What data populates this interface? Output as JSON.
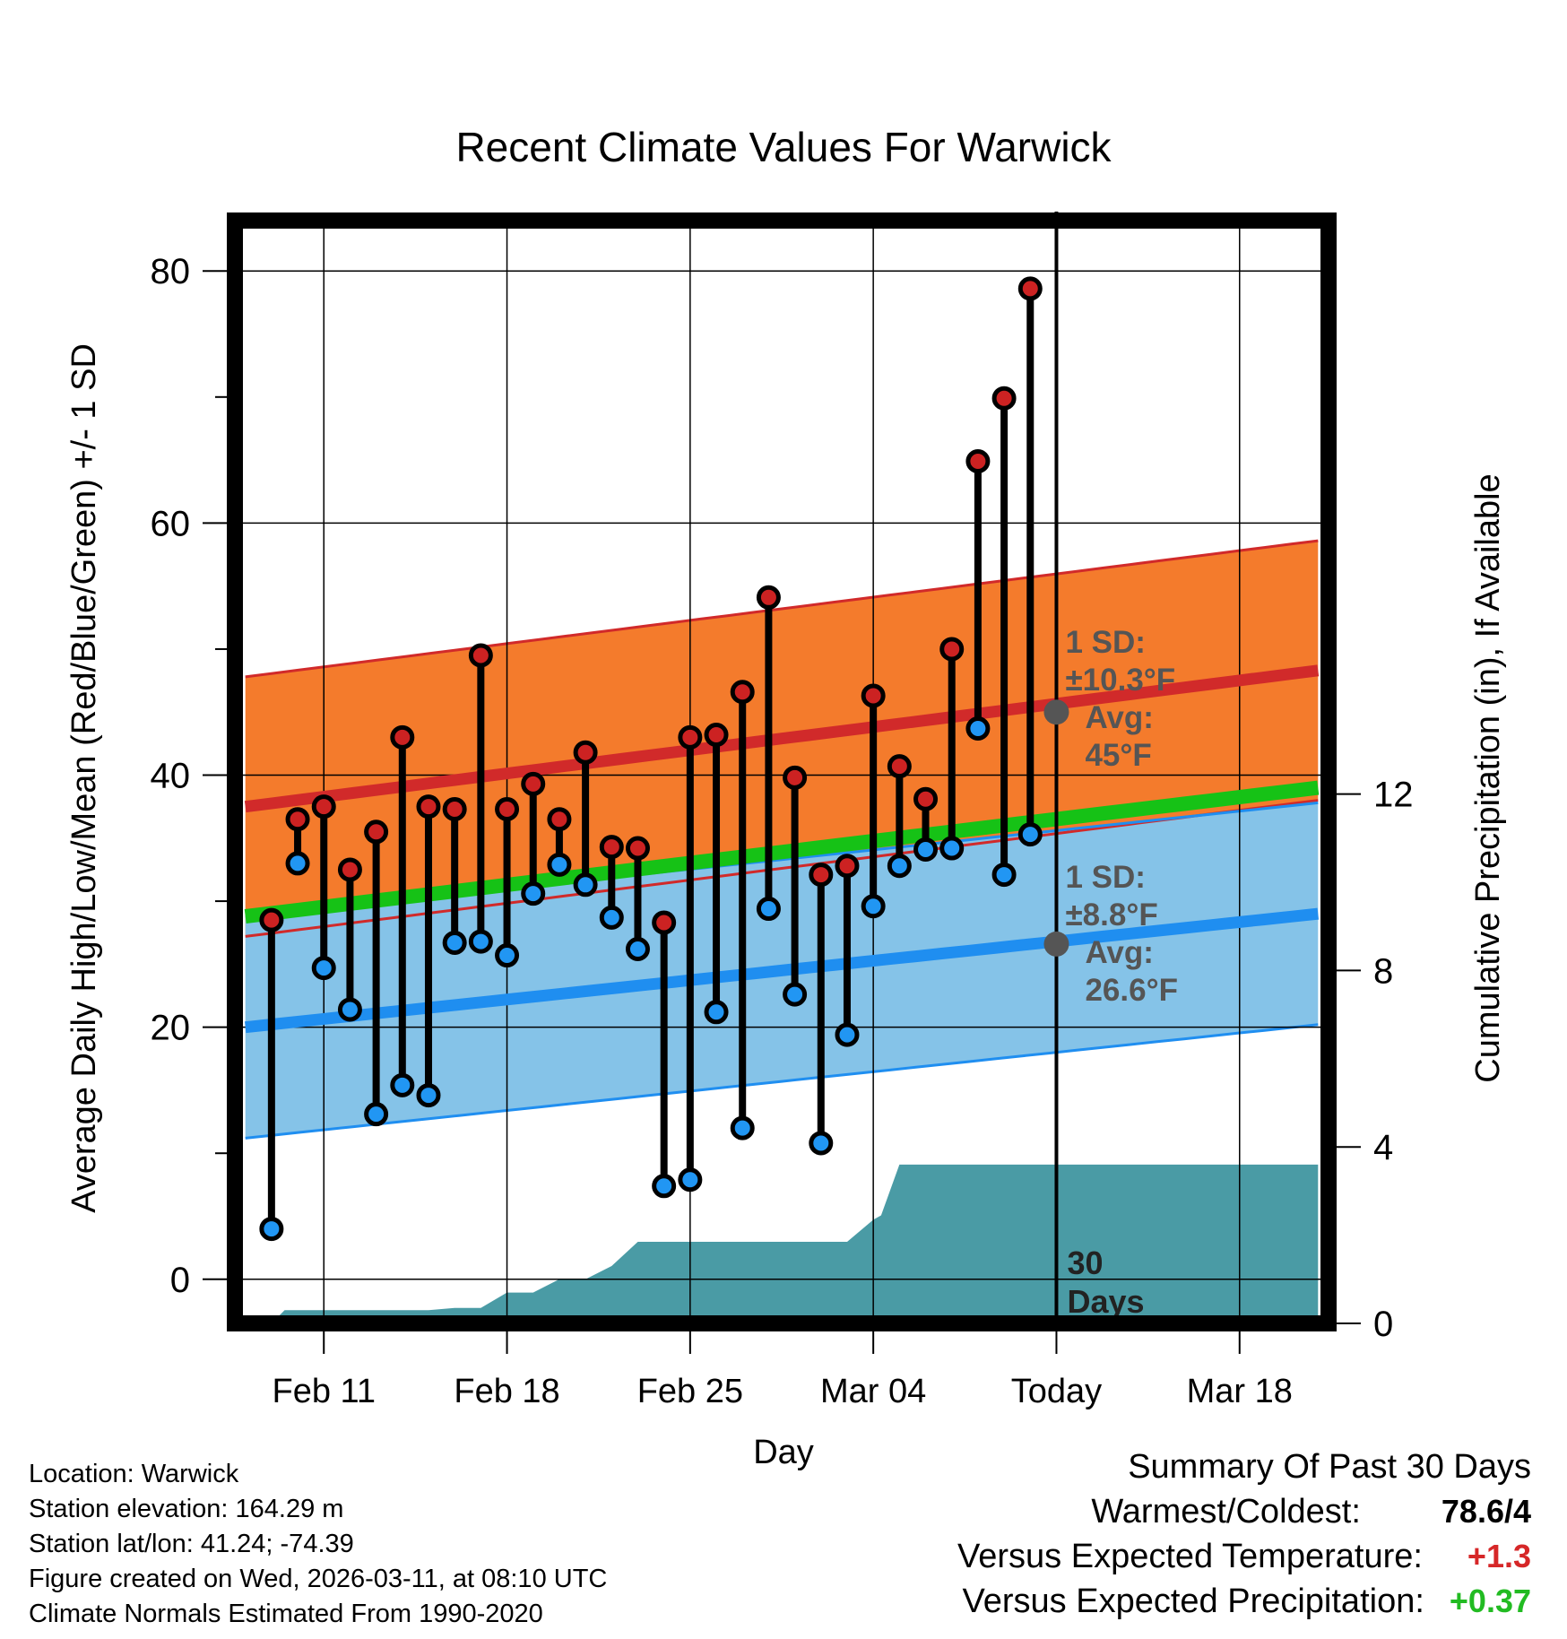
{
  "chart_data": {
    "type": "dumbbell",
    "title": "Recent Climate Values For Warwick",
    "xlabel": "Day",
    "ylabel": "Average Daily High/Low/Mean (Red/Blue/Green) +/- 1 SD",
    "ylabel_right": "Cumulative Precipitation (in), If Available",
    "ylim": [
      -3.5,
      84
    ],
    "ylim_right": [
      0,
      25
    ],
    "xlim": [
      -0.4,
      41.4
    ],
    "y_ticks": [
      0,
      20,
      40,
      60,
      80
    ],
    "y_ticks_right": [
      0,
      4,
      8,
      12
    ],
    "x_ticks": [
      {
        "x": 3,
        "label": "Feb 11"
      },
      {
        "x": 10,
        "label": "Feb 18"
      },
      {
        "x": 17,
        "label": "Feb 25"
      },
      {
        "x": 24,
        "label": "Mar 04"
      },
      {
        "x": 31,
        "label": "Today"
      },
      {
        "x": 38,
        "label": "Mar 18"
      }
    ],
    "today_x": 31,
    "window_label": "30\nDays",
    "daily_high": [
      28.5,
      36.5,
      37.5,
      32.5,
      35.5,
      43,
      37.5,
      37.3,
      49.5,
      37.3,
      39.3,
      36.5,
      41.8,
      34.3,
      34.2,
      28.3,
      43,
      43.2,
      46.6,
      54.1,
      39.8,
      32.1,
      32.8,
      46.3,
      40.7,
      38.1,
      50,
      64.9,
      69.9,
      78.6
    ],
    "daily_low": [
      4,
      33,
      24.7,
      21.4,
      13.1,
      15.4,
      14.6,
      26.7,
      26.8,
      25.7,
      30.6,
      32.9,
      31.3,
      28.7,
      26.2,
      7.4,
      7.9,
      21.2,
      12,
      29.4,
      22.6,
      10.8,
      19.4,
      29.6,
      32.8,
      34.1,
      34.2,
      43.7,
      32.1,
      35.3
    ],
    "normals": {
      "x": [
        0,
        41
      ],
      "high_avg": [
        37.5,
        48.3
      ],
      "high_sd": 10.3,
      "low_avg": [
        20,
        29
      ],
      "low_sd": 8.8,
      "mean_avg": [
        28.8,
        39
      ]
    },
    "high_annotation": {
      "sd_label": "1 SD:",
      "sd_value": "±10.3°F",
      "avg_label": "Avg:",
      "avg_value": "45°F",
      "marker_value": 45
    },
    "low_annotation": {
      "sd_label": "1 SD:",
      "sd_value": "±8.8°F",
      "avg_label": "Avg:",
      "avg_value": "26.6°F",
      "marker_value": 26.6
    },
    "precip_cumulative": {
      "x": [
        1,
        1.5,
        7,
        8,
        9,
        10,
        11,
        12,
        13,
        14,
        15,
        23,
        24,
        24.3,
        25,
        41
      ],
      "values": [
        0,
        0.3,
        0.3,
        0.35,
        0.35,
        0.7,
        0.7,
        1.0,
        1.0,
        1.3,
        1.85,
        1.85,
        2.35,
        2.45,
        3.6,
        3.6
      ]
    },
    "colors": {
      "high_band": "#f47b2c",
      "high_line": "#d12a2a",
      "low_band": "#85c3e8",
      "low_line": "#1f8ef0",
      "mean_line": "#16c216",
      "precip": "#4a9ba5",
      "high_dot": "#cc2222",
      "low_dot": "#2196f3",
      "marker": "#555555"
    }
  },
  "footer": {
    "location": "Location: Warwick",
    "elevation": "Station elevation: 164.29 m",
    "latlon": "Station lat/lon: 41.24; -74.39",
    "created": "Figure created on Wed, 2026-03-11, at 08:10 UTC",
    "normals": "Climate Normals Estimated From 1990-2020"
  },
  "summary": {
    "heading": "Summary Of Past 30 Days",
    "warmest_label": "Warmest/Coldest:",
    "warmest_value": "78.6/4",
    "temp_label": "Versus Expected Temperature:",
    "temp_value": "+1.3",
    "temp_color": "#d62728",
    "precip_label": "Versus Expected Precipitation:",
    "precip_value": "+0.37",
    "precip_color": "#22bb22"
  }
}
